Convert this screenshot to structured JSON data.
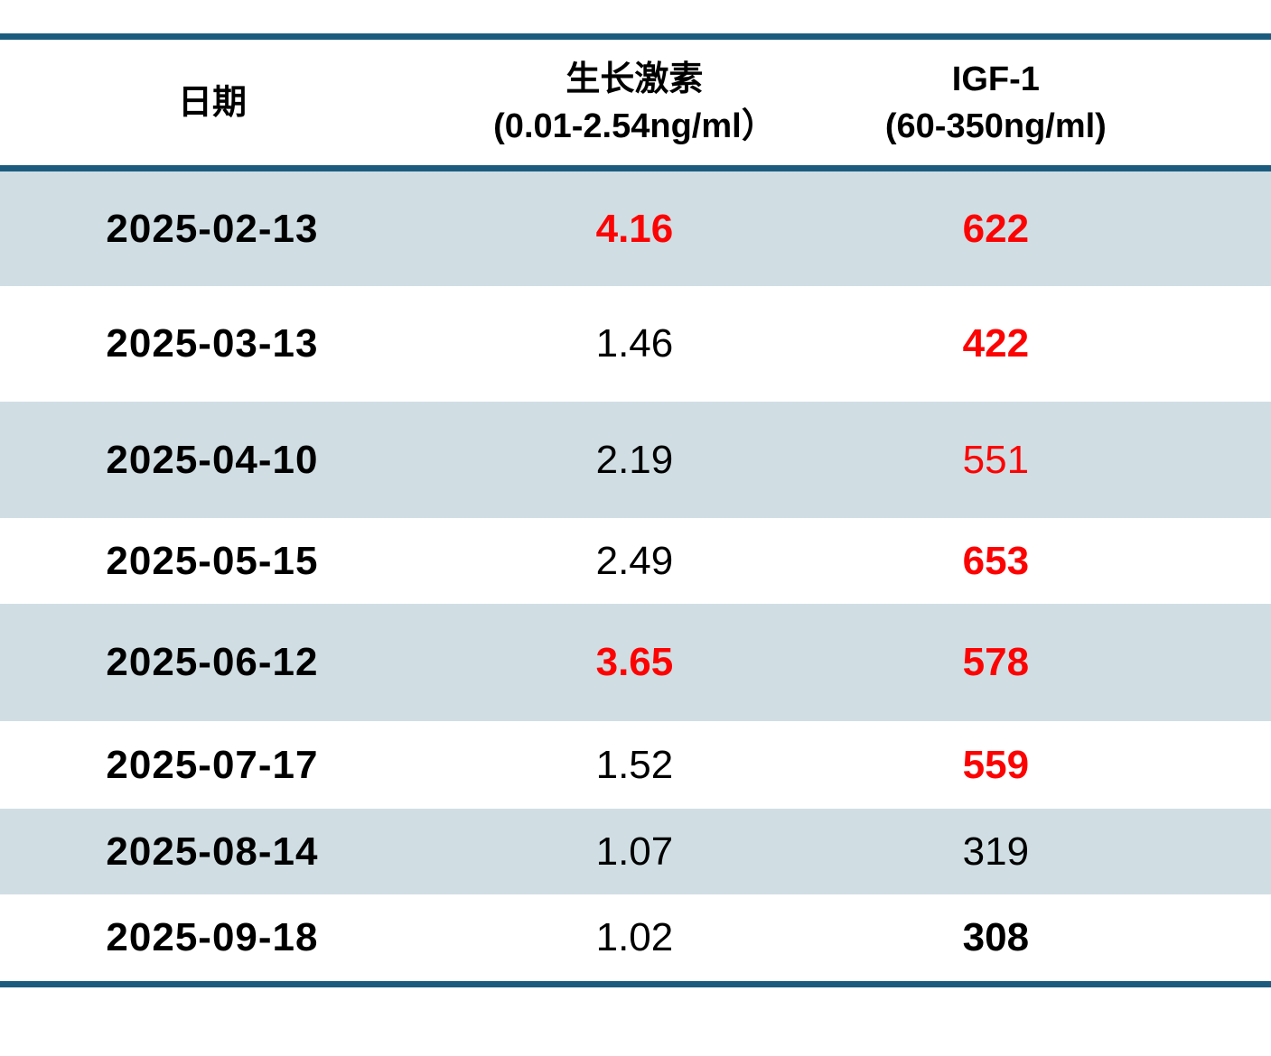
{
  "colors": {
    "rule_line": "#1B5C7E",
    "alt_row_bg": "#D0DEE4",
    "alert_red": "#FC0303",
    "text_black": "#000000"
  },
  "table": {
    "header": {
      "date": {
        "title": "日期"
      },
      "growth_hormone": {
        "title": "生长激素",
        "range": "(0.01-2.54ng/ml）"
      },
      "igf1": {
        "title": "IGF-1",
        "range": "(60-350ng/ml)"
      }
    },
    "rows": [
      {
        "date": "2025-02-13",
        "gh": {
          "value": "4.16",
          "style": "red bold"
        },
        "igf": {
          "value": "622",
          "style": "red bold"
        }
      },
      {
        "date": "2025-03-13",
        "gh": {
          "value": "1.46",
          "style": ""
        },
        "igf": {
          "value": "422",
          "style": "red bold"
        }
      },
      {
        "date": "2025-04-10",
        "gh": {
          "value": "2.19",
          "style": ""
        },
        "igf": {
          "value": "551",
          "style": "red"
        }
      },
      {
        "date": "2025-05-15",
        "gh": {
          "value": "2.49",
          "style": ""
        },
        "igf": {
          "value": "653",
          "style": "red bold"
        }
      },
      {
        "date": "2025-06-12",
        "gh": {
          "value": "3.65",
          "style": "red bold"
        },
        "igf": {
          "value": "578",
          "style": "red bold"
        }
      },
      {
        "date": "2025-07-17",
        "gh": {
          "value": "1.52",
          "style": ""
        },
        "igf": {
          "value": "559",
          "style": "red bold"
        }
      },
      {
        "date": "2025-08-14",
        "gh": {
          "value": "1.07",
          "style": ""
        },
        "igf": {
          "value": "319",
          "style": ""
        }
      },
      {
        "date": "2025-09-18",
        "gh": {
          "value": "1.02",
          "style": ""
        },
        "igf": {
          "value": "308",
          "style": "bold"
        }
      }
    ]
  }
}
